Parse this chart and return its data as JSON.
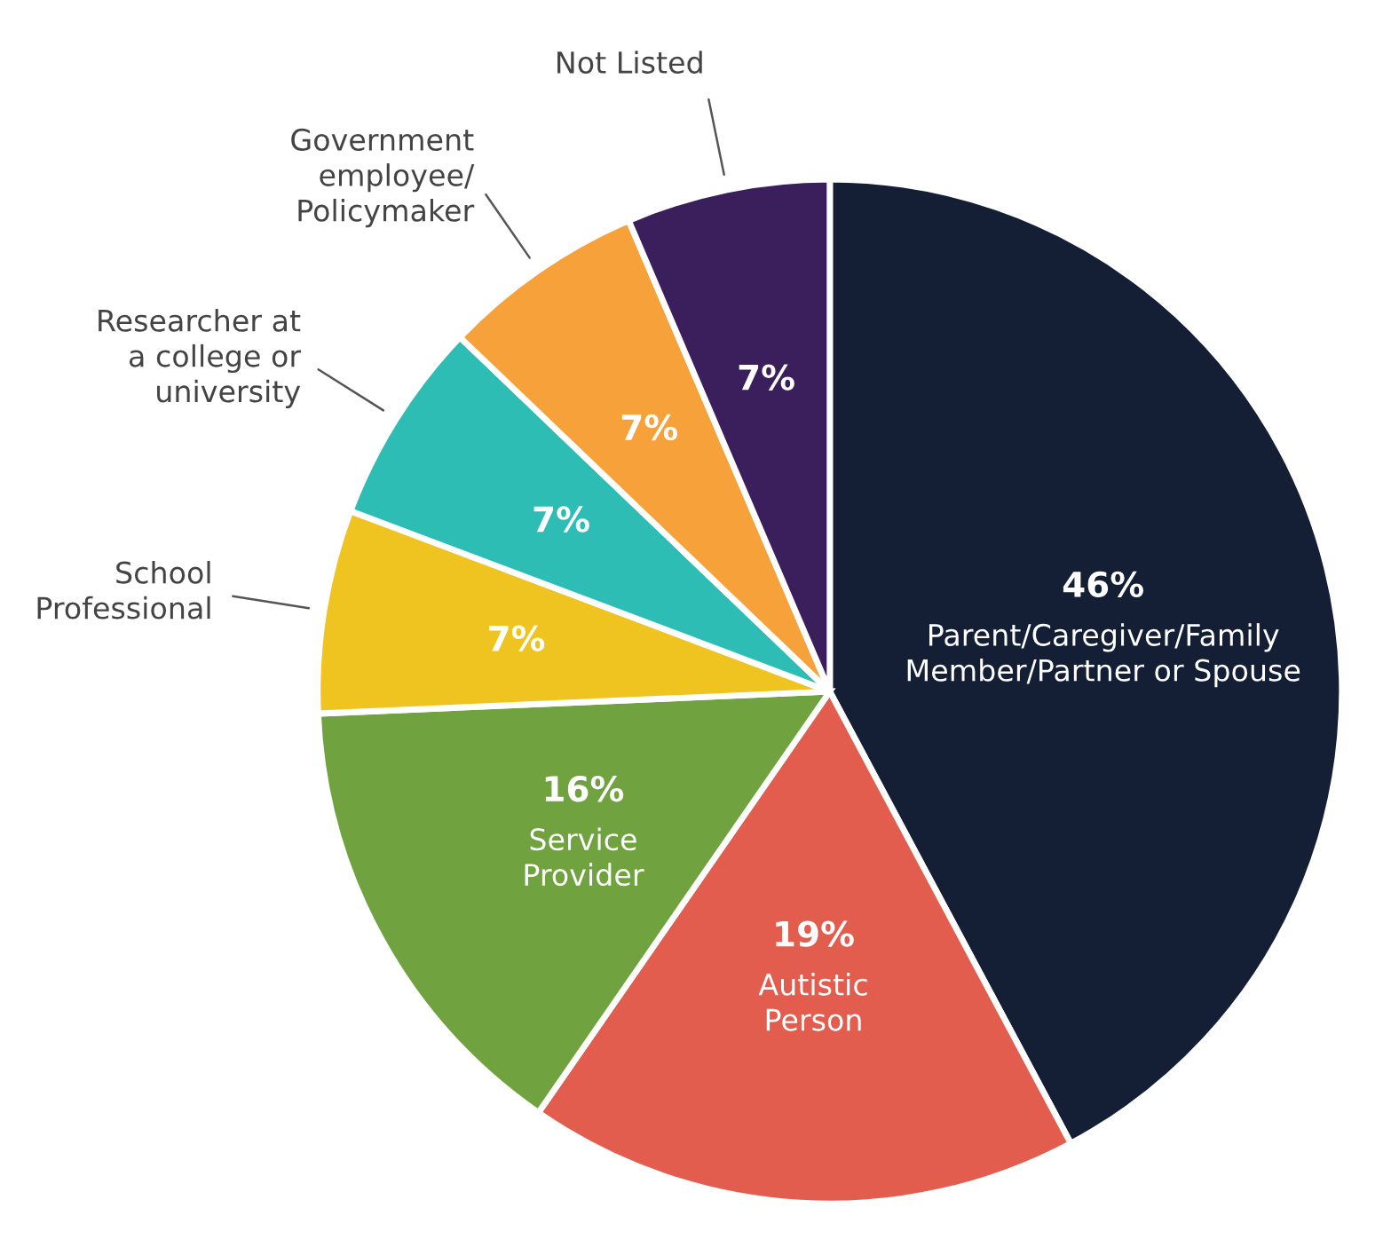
{
  "chart_data": {
    "type": "pie",
    "categories": [
      "Parent/Caregiver/Family\nMember/Partner or Spouse",
      "Autistic\nPerson",
      "Service\nProvider",
      "School\nProfessional",
      "Researcher at\na college or\nuniversity",
      "Government\nemployee/\nPolicymaker",
      "Not Listed"
    ],
    "values": [
      46,
      19,
      16,
      7,
      7,
      7,
      7
    ],
    "value_labels": [
      "46%",
      "19%",
      "16%",
      "7%",
      "7%",
      "7%",
      "7%"
    ],
    "colors": [
      "#141f36",
      "#e35d4f",
      "#70a340",
      "#f0c420",
      "#2ebdb5",
      "#f7a13b",
      "#3a1f5c"
    ]
  }
}
